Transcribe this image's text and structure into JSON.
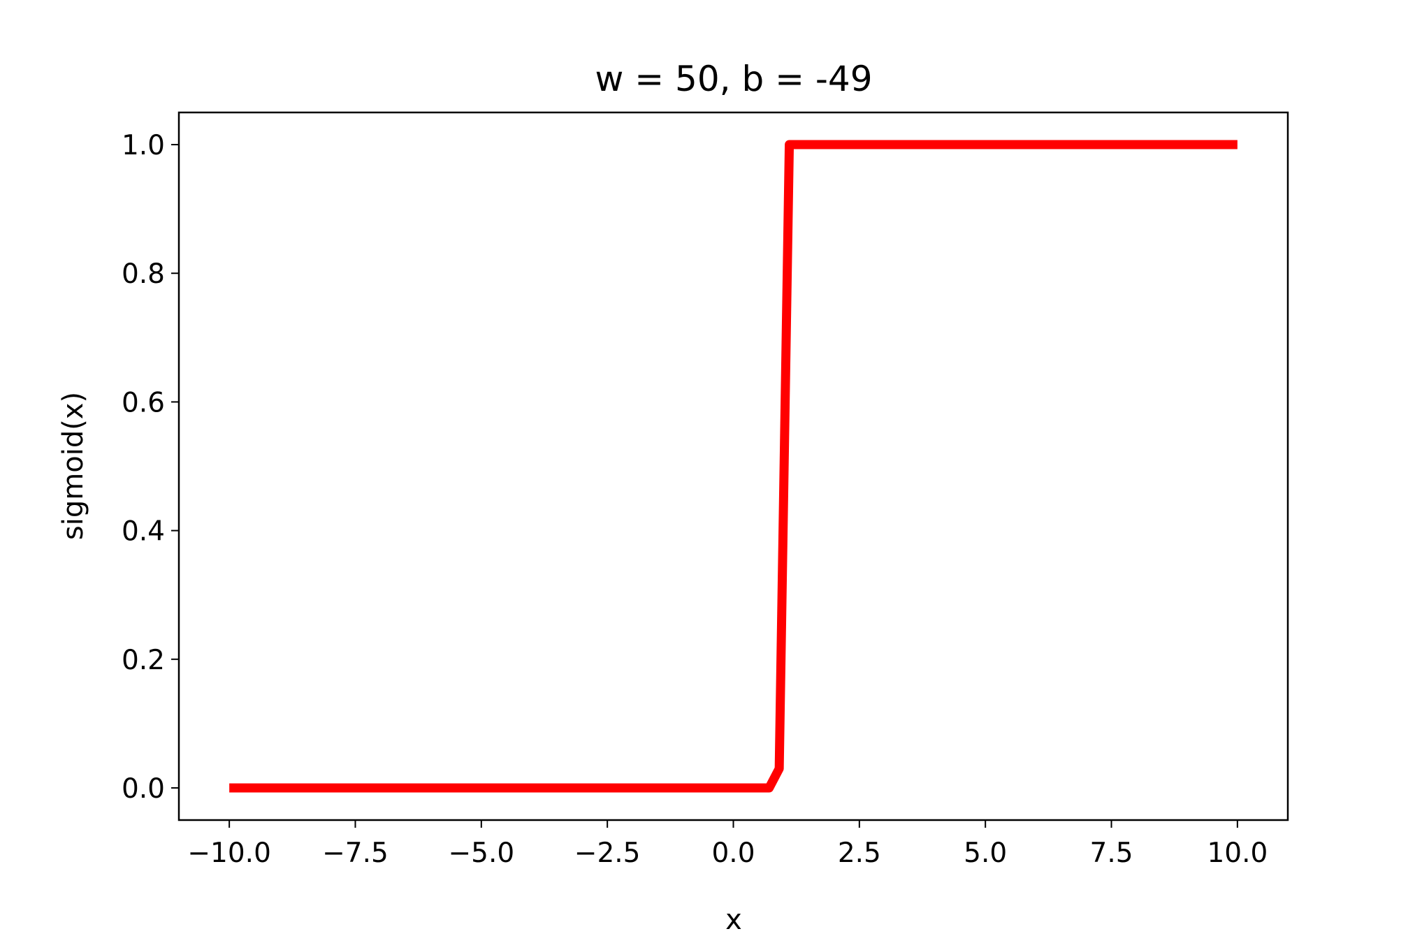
{
  "chart_data": {
    "type": "line",
    "title": "w = 50, b = -49",
    "xlabel": "x",
    "ylabel": "sigmoid(x)",
    "x": [
      -10,
      0.71,
      0.91,
      1.11,
      10
    ],
    "series": [
      {
        "color": "#ff0000",
        "values": [
          0,
          0,
          0.03,
          1,
          1
        ]
      }
    ],
    "xlim": [
      -11,
      11
    ],
    "ylim": [
      -0.05,
      1.05
    ],
    "xticks": [
      {
        "value": -10,
        "label": "−10.0"
      },
      {
        "value": -7.5,
        "label": "−7.5"
      },
      {
        "value": -5,
        "label": "−5.0"
      },
      {
        "value": -2.5,
        "label": "−2.5"
      },
      {
        "value": 0,
        "label": "0.0"
      },
      {
        "value": 2.5,
        "label": "2.5"
      },
      {
        "value": 5,
        "label": "5.0"
      },
      {
        "value": 7.5,
        "label": "7.5"
      },
      {
        "value": 10,
        "label": "10.0"
      }
    ],
    "yticks": [
      {
        "value": 0,
        "label": "0.0"
      },
      {
        "value": 0.2,
        "label": "0.2"
      },
      {
        "value": 0.4,
        "label": "0.4"
      },
      {
        "value": 0.6,
        "label": "0.6"
      },
      {
        "value": 0.8,
        "label": "0.8"
      },
      {
        "value": 1,
        "label": "1.0"
      }
    ],
    "grid": false
  }
}
